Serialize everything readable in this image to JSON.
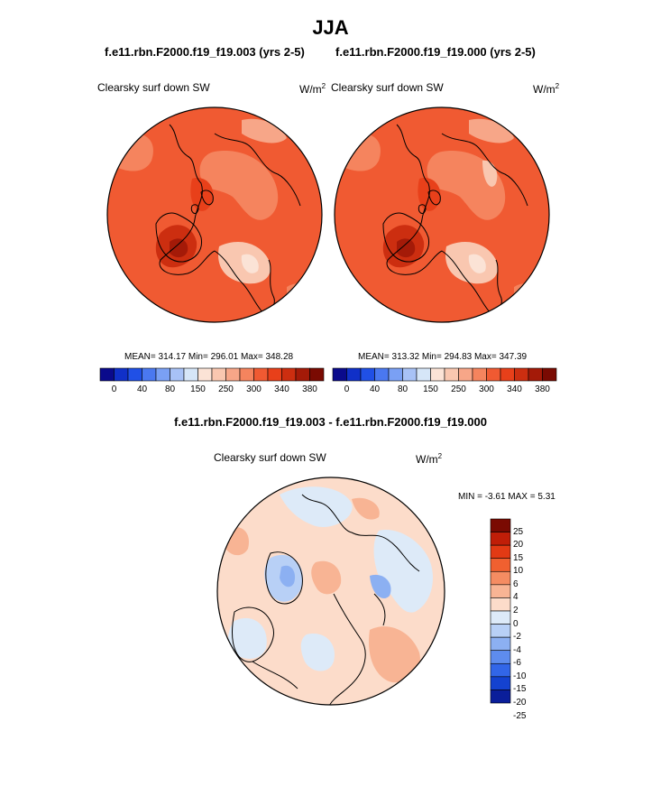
{
  "figure": {
    "season": "JJA",
    "case_titles": [
      "f.e11.rbn.F2000.f19_f19.003 (yrs 2-5)",
      "f.e11.rbn.F2000.f19_f19.000 (yrs 2-5)"
    ],
    "diff_title": "f.e11.rbn.F2000.f19_f19.003 - f.e11.rbn.F2000.f19_f19.000"
  },
  "panels": [
    {
      "variable": "Clearsky surf down SW",
      "units": "W/m",
      "units_exp": "2",
      "stats": "MEAN= 314.17  Min= 296.01  Max= 348.28"
    },
    {
      "variable": "Clearsky surf down SW",
      "units": "W/m",
      "units_exp": "2",
      "stats": "MEAN= 313.32  Min= 294.83  Max= 347.39"
    }
  ],
  "diff_panel": {
    "variable": "Clearsky surf down SW",
    "units": "W/m",
    "units_exp": "2",
    "stats": "MIN =  -3.61 MAX =  5.31"
  },
  "colorbar_abs": {
    "colors": [
      "#0a0a8c",
      "#1030c8",
      "#2050e6",
      "#4a78f0",
      "#7aa0f4",
      "#a8c2f6",
      "#d6e6f8",
      "#fbe3d6",
      "#f9c7b0",
      "#f7a688",
      "#f5845e",
      "#f05a32",
      "#e8401a",
      "#cc2e10",
      "#a41a08",
      "#7a0a02"
    ],
    "labels": [
      "0",
      "40",
      "80",
      "150",
      "250",
      "300",
      "340",
      "380"
    ]
  },
  "colorbar_diff": {
    "colors": [
      "#7a0a02",
      "#c01e08",
      "#e23a14",
      "#f06030",
      "#f58c62",
      "#f8b494",
      "#fcdcca",
      "#ddeaf8",
      "#b8d0f6",
      "#8cb0f2",
      "#5e8cee",
      "#3266e8",
      "#1442d0",
      "#0a1e9a"
    ],
    "labels": [
      "25",
      "20",
      "15",
      "10",
      "6",
      "4",
      "2",
      "0",
      "-2",
      "-4",
      "-6",
      "-10",
      "-15",
      "-20",
      "-25"
    ]
  }
}
